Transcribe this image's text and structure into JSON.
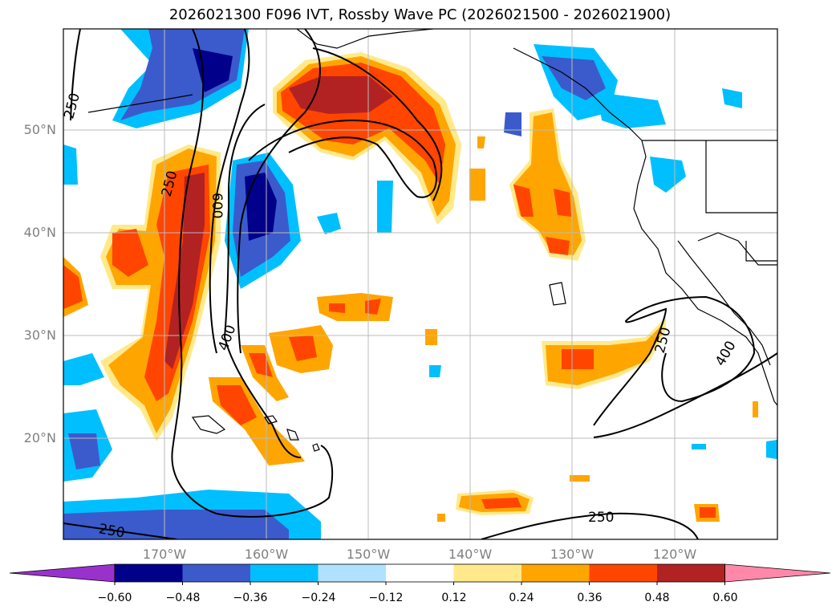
{
  "title": "2026021300 F096 IVT, Rossby Wave PC (2026021500 - 2026021900)",
  "lat_labels": [
    "50°N",
    "40°N",
    "30°N",
    "20°N"
  ],
  "lon_labels": [
    "170°W",
    "160°W",
    "150°W",
    "140°W",
    "130°W",
    "120°W"
  ],
  "contour_labels": [
    "250",
    "250",
    "600",
    "400",
    "250",
    "250",
    "400",
    "250"
  ],
  "colorbar": {
    "ticks": [
      "−0.60",
      "−0.48",
      "−0.36",
      "−0.24",
      "−0.12",
      "0.12",
      "0.24",
      "0.36",
      "0.48",
      "0.60"
    ],
    "colors": [
      "#9932cc",
      "#00008b",
      "#3b5bcc",
      "#00bfff",
      "#b0e2ff",
      "#ffffff",
      "#ffe98a",
      "#ffa500",
      "#ff4500",
      "#b22222",
      "#ff88aa"
    ]
  }
}
